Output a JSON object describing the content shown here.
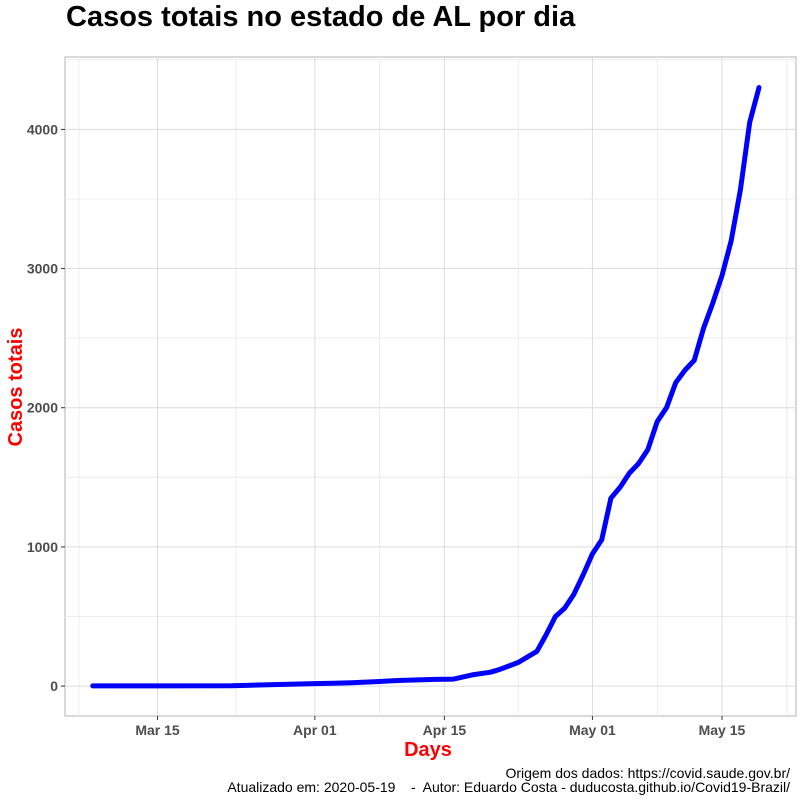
{
  "chart_data": {
    "type": "line",
    "title": "Casos totais no estado de AL por dia",
    "xlabel": "Days",
    "ylabel": "Casos totais",
    "x_ticks": [
      "2020-03-15",
      "2020-04-01",
      "2020-04-15",
      "2020-05-01",
      "2020-05-15"
    ],
    "x_tick_labels": [
      "Mar 15",
      "Apr 01",
      "Apr 15",
      "May 01",
      "May 15"
    ],
    "y_ticks": [
      0,
      1000,
      2000,
      3000,
      4000
    ],
    "y_tick_labels": [
      "0",
      "1000",
      "2000",
      "3000",
      "4000"
    ],
    "xlim": [
      "2020-03-05",
      "2020-05-23"
    ],
    "ylim": [
      -215,
      4520
    ],
    "grid": true,
    "series": [
      {
        "color": "#0000ff",
        "x": [
          "2020-03-08",
          "2020-03-15",
          "2020-03-23",
          "2020-03-27",
          "2020-04-01",
          "2020-04-03",
          "2020-04-05",
          "2020-04-08",
          "2020-04-10",
          "2020-04-14",
          "2020-04-16",
          "2020-04-18",
          "2020-04-20",
          "2020-04-21",
          "2020-04-23",
          "2020-04-25",
          "2020-04-26",
          "2020-04-27",
          "2020-04-28",
          "2020-04-29",
          "2020-04-30",
          "2020-05-01",
          "2020-05-02",
          "2020-05-03",
          "2020-05-04",
          "2020-05-05",
          "2020-05-06",
          "2020-05-07",
          "2020-05-08",
          "2020-05-09",
          "2020-05-10",
          "2020-05-11",
          "2020-05-12",
          "2020-05-13",
          "2020-05-14",
          "2020-05-15",
          "2020-05-16",
          "2020-05-17",
          "2020-05-18",
          "2020-05-19"
        ],
        "y": [
          1,
          1,
          2,
          10,
          18,
          20,
          24,
          33,
          40,
          48,
          50,
          80,
          100,
          120,
          170,
          250,
          370,
          500,
          560,
          660,
          800,
          950,
          1050,
          1350,
          1430,
          1530,
          1600,
          1700,
          1900,
          2000,
          2180,
          2270,
          2340,
          2570,
          2750,
          2950,
          3200,
          3570,
          4050,
          4300
        ]
      }
    ]
  },
  "caption": {
    "source": "Origem dos dados: https://covid.saude.gov.br/",
    "updated": "Atualizado em: 2020-05-19    -  Autor: Eduardo Costa - duducosta.github.io/Covid19-Brazil/"
  }
}
